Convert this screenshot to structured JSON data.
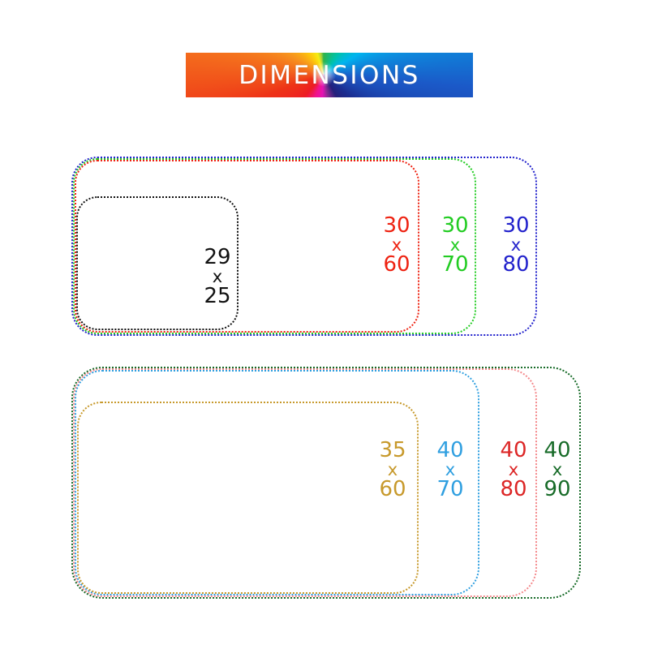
{
  "banner": {
    "title": "DIMENSIONS",
    "text_color": "#ffffff",
    "gradient_style": "rainbow-color-wheel",
    "gradient_colors": [
      "#2fb34a",
      "#00b4ef",
      "#1b2d90",
      "#8c2b92",
      "#e513b4",
      "#ed1c24",
      "#f3641c",
      "#f7941d",
      "#f6ec13"
    ]
  },
  "top_group": {
    "s29x25": {
      "first": "29",
      "sep": "x",
      "second": "25",
      "color": "#111111",
      "border_color": "#111111"
    },
    "s30x60": {
      "first": "30",
      "sep": "x",
      "second": "60",
      "color": "#ee2211",
      "border_color": "#ee2211"
    },
    "s30x70": {
      "first": "30",
      "sep": "x",
      "second": "70",
      "color": "#22cc22",
      "border_color": "#22cc22"
    },
    "s30x80": {
      "first": "30",
      "sep": "x",
      "second": "80",
      "color": "#2222cc",
      "border_color": "#2222cc"
    }
  },
  "bottom_group": {
    "s35x60": {
      "first": "35",
      "sep": "x",
      "second": "60",
      "color": "#c7992b",
      "border_color": "#c7992b"
    },
    "s40x70": {
      "first": "40",
      "sep": "x",
      "second": "70",
      "color": "#2f9fe0",
      "border_color": "#2f9fe0"
    },
    "s40x80": {
      "first": "40",
      "sep": "x",
      "second": "80",
      "color": "#dc2626",
      "border_color": "#f4898c"
    },
    "s40x90": {
      "first": "40",
      "sep": "x",
      "second": "90",
      "color": "#176b28",
      "border_color": "#176b28"
    }
  }
}
